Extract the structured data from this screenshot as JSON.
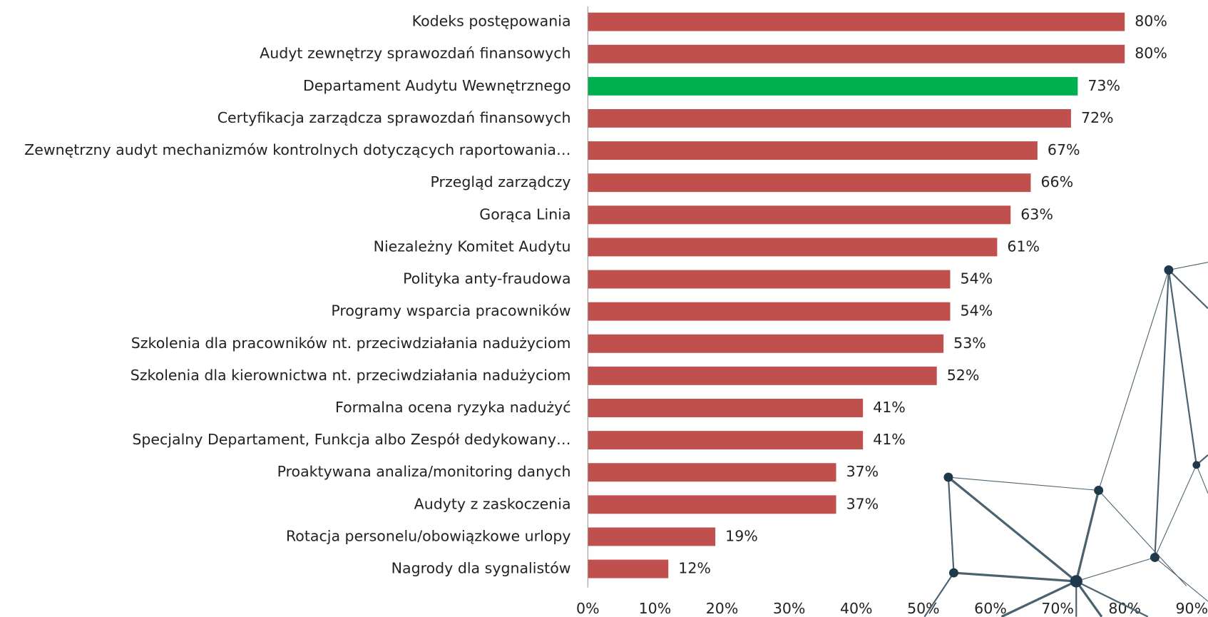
{
  "chart_data": {
    "type": "barh",
    "categories": [
      "Kodeks postępowania",
      "Audyt zewnętrzy sprawozdań finansowych",
      "Departament Audytu Wewnętrznego",
      "Certyfikacja zarządcza sprawozdań finansowych",
      "Zewnętrzny audyt mechanizmów kontrolnych dotyczących raportowania…",
      "Przegląd zarządczy",
      "Gorąca Linia",
      "Niezależny Komitet Audytu",
      "Polityka anty-fraudowa",
      "Programy wsparcia pracowników",
      "Szkolenia dla pracowników nt. przeciwdziałania nadużyciom",
      "Szkolenia dla kierownictwa nt. przeciwdziałania nadużyciom",
      "Formalna ocena ryzyka nadużyć",
      "Specjalny Departament, Funkcja albo Zespół dedykowany…",
      "Proaktywana analiza/monitoring danych",
      "Audyty z zaskoczenia",
      "Rotacja personelu/obowiązkowe urlopy",
      "Nagrody dla sygnalistów"
    ],
    "values": [
      80,
      80,
      73,
      72,
      67,
      66,
      63,
      61,
      54,
      54,
      53,
      52,
      41,
      41,
      37,
      37,
      19,
      12
    ],
    "value_labels": [
      "80%",
      "80%",
      "73%",
      "72%",
      "67%",
      "66%",
      "63%",
      "61%",
      "54%",
      "54%",
      "53%",
      "52%",
      "41%",
      "41%",
      "37%",
      "37%",
      "19%",
      "12%"
    ],
    "colors": [
      "#c0504d",
      "#c0504d",
      "#00b050",
      "#c0504d",
      "#c0504d",
      "#c0504d",
      "#c0504d",
      "#c0504d",
      "#c0504d",
      "#c0504d",
      "#c0504d",
      "#c0504d",
      "#c0504d",
      "#c0504d",
      "#c0504d",
      "#c0504d",
      "#c0504d",
      "#c0504d"
    ],
    "xlim": [
      0,
      90
    ],
    "xticks": [
      {
        "value": 0,
        "label": "0%"
      },
      {
        "value": 10,
        "label": "10%"
      },
      {
        "value": 20,
        "label": "20%"
      },
      {
        "value": 30,
        "label": "30%"
      },
      {
        "value": 40,
        "label": "40%"
      },
      {
        "value": 50,
        "label": "50%"
      },
      {
        "value": 60,
        "label": "60%"
      },
      {
        "value": 70,
        "label": "70%"
      },
      {
        "value": 80,
        "label": "80%"
      },
      {
        "value": 90,
        "label": "90%"
      }
    ]
  }
}
